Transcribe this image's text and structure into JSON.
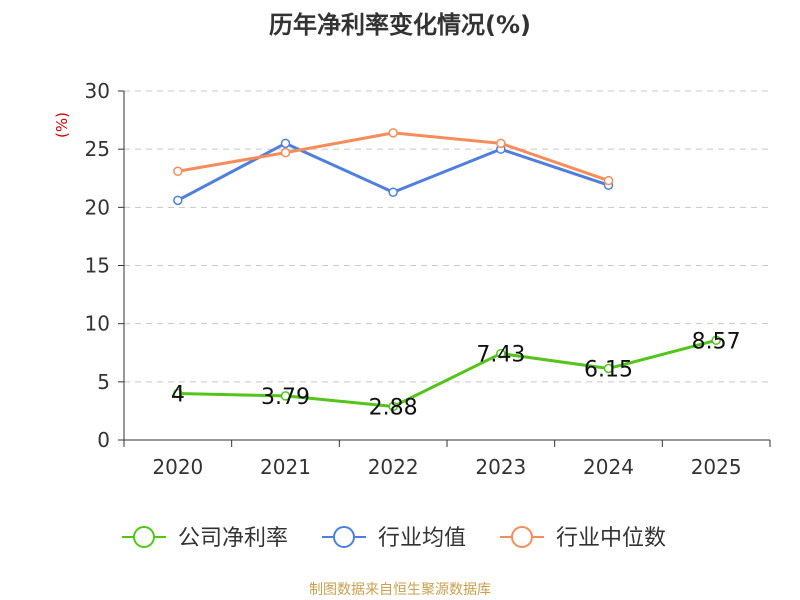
{
  "chart_data": {
    "type": "line",
    "title": "历年净利率变化情况(%)",
    "ylabel": "(%)",
    "xlabel": "",
    "categories": [
      "2020",
      "2021",
      "2022",
      "2023",
      "2024",
      "2025"
    ],
    "ylim": [
      0,
      30
    ],
    "yticks": [
      0,
      5,
      10,
      15,
      20,
      25,
      30
    ],
    "grid": true,
    "legend_position": "bottom",
    "series": [
      {
        "name": "公司净利率",
        "color": "#52c41a",
        "values": [
          4,
          3.79,
          2.88,
          7.43,
          6.15,
          8.57
        ],
        "labels": [
          "4",
          "3.79",
          "2.88",
          "7.43",
          "6.15",
          "8.57"
        ]
      },
      {
        "name": "行业均值",
        "color": "#4f7fdc",
        "values": [
          20.6,
          25.5,
          21.3,
          25.0,
          21.9,
          null
        ]
      },
      {
        "name": "行业中位数",
        "color": "#f78c5b",
        "values": [
          23.1,
          24.7,
          26.4,
          25.5,
          22.3,
          null
        ]
      }
    ],
    "source": "制图数据来自恒生聚源数据库"
  }
}
